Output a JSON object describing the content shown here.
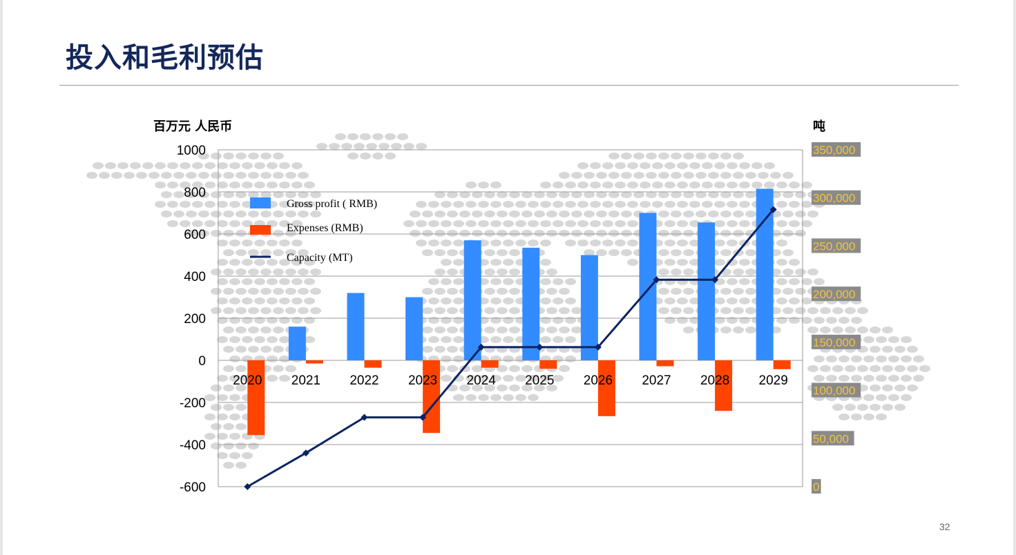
{
  "slide": {
    "title": "投入和毛利预估",
    "page_number": "32"
  },
  "colors": {
    "title": "#14275a",
    "gross_profit": "#338cff",
    "expenses": "#ff4400",
    "capacity": "#0b2363",
    "right_axis_label_bg": "#8a8a8a",
    "right_axis_label_text": "#f3c33f",
    "gridline": "#9a9a9a",
    "map_dots": "#d7d7d7"
  },
  "chart_data": {
    "type": "bar",
    "categories": [
      "2020",
      "2021",
      "2022",
      "2023",
      "2024",
      "2025",
      "2026",
      "2027",
      "2028",
      "2029"
    ],
    "series": [
      {
        "name": "Gross profit ( RMB)",
        "type": "bar",
        "axis": "left",
        "values": [
          0,
          160,
          320,
          300,
          570,
          535,
          500,
          700,
          655,
          815
        ]
      },
      {
        "name": "Expenses (RMB)",
        "type": "bar",
        "axis": "left",
        "values": [
          -355,
          -15,
          -35,
          -345,
          -35,
          -40,
          -265,
          -28,
          -240,
          -42
        ]
      },
      {
        "name": "Capacity (MT)",
        "type": "line",
        "axis": "right",
        "values": [
          0,
          35000,
          72000,
          72000,
          145000,
          145000,
          145000,
          215000,
          215000,
          288000
        ]
      }
    ],
    "left_axis": {
      "title": "百万元 人民币",
      "min": -600,
      "max": 1000,
      "step": 200,
      "tick_labels": [
        "1000",
        "800",
        "600",
        "400",
        "200",
        "0",
        "-200",
        "-400",
        "-600"
      ]
    },
    "right_axis": {
      "title": "吨",
      "min": 0,
      "max": 350000,
      "step": 50000,
      "tick_labels": [
        "350,000",
        "300,000",
        "250,000",
        "200,000",
        "150,000",
        "100,000",
        "50,000",
        "0"
      ]
    },
    "grid": true,
    "legend_position": "top-left",
    "background": "world-map-dots"
  }
}
